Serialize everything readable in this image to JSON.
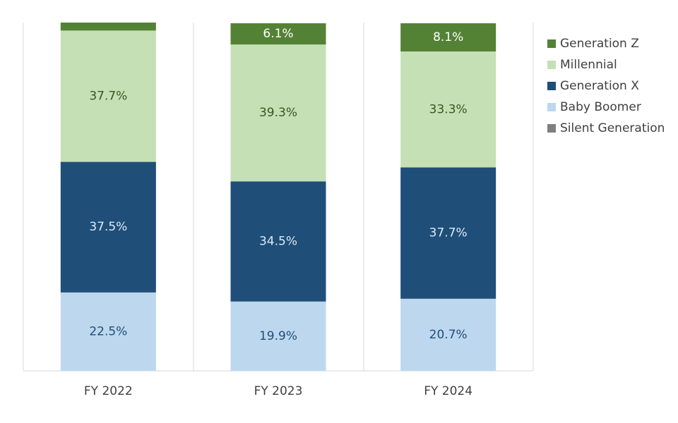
{
  "chart_data": {
    "type": "bar",
    "stacked": true,
    "categories": [
      "FY 2022",
      "FY 2023",
      "FY 2024"
    ],
    "ylim": [
      0,
      100
    ],
    "grid": false,
    "legend_position": "right",
    "series": [
      {
        "name": "Silent Generation",
        "values": [
          0,
          0,
          0
        ],
        "labels": [
          "",
          "",
          ""
        ],
        "color": "#7f7f7f",
        "label_color": "#ffffff"
      },
      {
        "name": "Baby Boomer",
        "values": [
          22.5,
          19.9,
          20.7
        ],
        "labels": [
          "22.5%",
          "19.9%",
          "20.7%"
        ],
        "color": "#bdd7ee",
        "label_color": "#1f4e79"
      },
      {
        "name": "Generation X",
        "values": [
          37.5,
          34.5,
          37.7
        ],
        "labels": [
          "37.5%",
          "34.5%",
          "37.7%"
        ],
        "color": "#1f4e79",
        "label_color": "#ddebf7"
      },
      {
        "name": "Millennial",
        "values": [
          37.7,
          39.3,
          33.3
        ],
        "labels": [
          "37.7%",
          "39.3%",
          "33.3%"
        ],
        "color": "#c5e0b4",
        "label_color": "#385723"
      },
      {
        "name": "Generation Z",
        "values": [
          2.3,
          6.1,
          8.1
        ],
        "labels": [
          "",
          "6.1%",
          "8.1%"
        ],
        "color": "#548235",
        "label_color": "#ffffff"
      }
    ],
    "legend": [
      "Generation Z",
      "Millennial",
      "Generation X",
      "Baby Boomer",
      "Silent Generation"
    ]
  }
}
